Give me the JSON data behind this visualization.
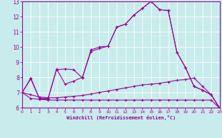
{
  "xlabel": "Windchill (Refroidissement éolien,°C)",
  "bg_color": "#c8ecec",
  "line_color": "#990099",
  "grid_color": "#ffffff",
  "xlim": [
    0,
    23
  ],
  "ylim": [
    6,
    13
  ],
  "xticks": [
    0,
    1,
    2,
    3,
    4,
    5,
    6,
    7,
    8,
    9,
    10,
    11,
    12,
    13,
    14,
    15,
    16,
    17,
    18,
    19,
    20,
    21,
    22,
    23
  ],
  "yticks": [
    6,
    7,
    8,
    9,
    10,
    11,
    12,
    13
  ],
  "lines": [
    {
      "x": [
        0,
        1,
        2,
        3,
        4,
        5,
        6,
        7,
        8,
        9,
        10,
        11,
        12,
        13,
        14,
        15,
        16,
        17,
        18,
        19,
        20,
        21,
        22,
        23
      ],
      "y": [
        7.0,
        7.95,
        6.6,
        6.55,
        8.55,
        7.55,
        7.75,
        8.0,
        9.7,
        9.9,
        10.05,
        11.3,
        11.5,
        12.1,
        12.55,
        13.0,
        12.45,
        12.4,
        9.65,
        8.65,
        7.4,
        7.15,
        6.85,
        5.95
      ]
    },
    {
      "x": [
        0,
        1,
        2,
        3,
        4,
        5,
        6,
        7,
        8,
        9,
        10,
        11,
        12,
        13,
        14,
        15,
        16,
        17,
        18,
        19,
        20,
        21,
        22,
        23
      ],
      "y": [
        7.0,
        7.9,
        6.6,
        6.6,
        8.5,
        8.55,
        8.5,
        7.95,
        9.8,
        10.0,
        10.05,
        11.3,
        11.5,
        12.1,
        12.55,
        13.0,
        12.45,
        12.4,
        9.65,
        8.65,
        7.4,
        7.15,
        6.85,
        5.95
      ]
    },
    {
      "x": [
        0,
        1,
        2,
        3,
        4,
        5,
        6,
        7,
        8,
        9,
        10,
        11,
        12,
        13,
        14,
        15,
        16,
        17,
        18,
        19,
        20,
        21,
        22,
        23
      ],
      "y": [
        7.0,
        6.6,
        6.55,
        6.5,
        6.5,
        6.5,
        6.5,
        6.5,
        6.5,
        6.5,
        6.5,
        6.5,
        6.5,
        6.5,
        6.5,
        6.5,
        6.5,
        6.5,
        6.5,
        6.5,
        6.5,
        6.5,
        6.5,
        5.95
      ]
    },
    {
      "x": [
        0,
        1,
        2,
        3,
        4,
        5,
        6,
        7,
        8,
        9,
        10,
        11,
        12,
        13,
        14,
        15,
        16,
        17,
        18,
        19,
        20,
        21,
        22,
        23
      ],
      "y": [
        7.0,
        6.85,
        6.7,
        6.65,
        6.65,
        6.7,
        6.75,
        6.8,
        6.9,
        7.0,
        7.1,
        7.2,
        7.3,
        7.4,
        7.5,
        7.55,
        7.6,
        7.7,
        7.8,
        7.85,
        7.95,
        7.4,
        6.85,
        5.95
      ]
    }
  ]
}
